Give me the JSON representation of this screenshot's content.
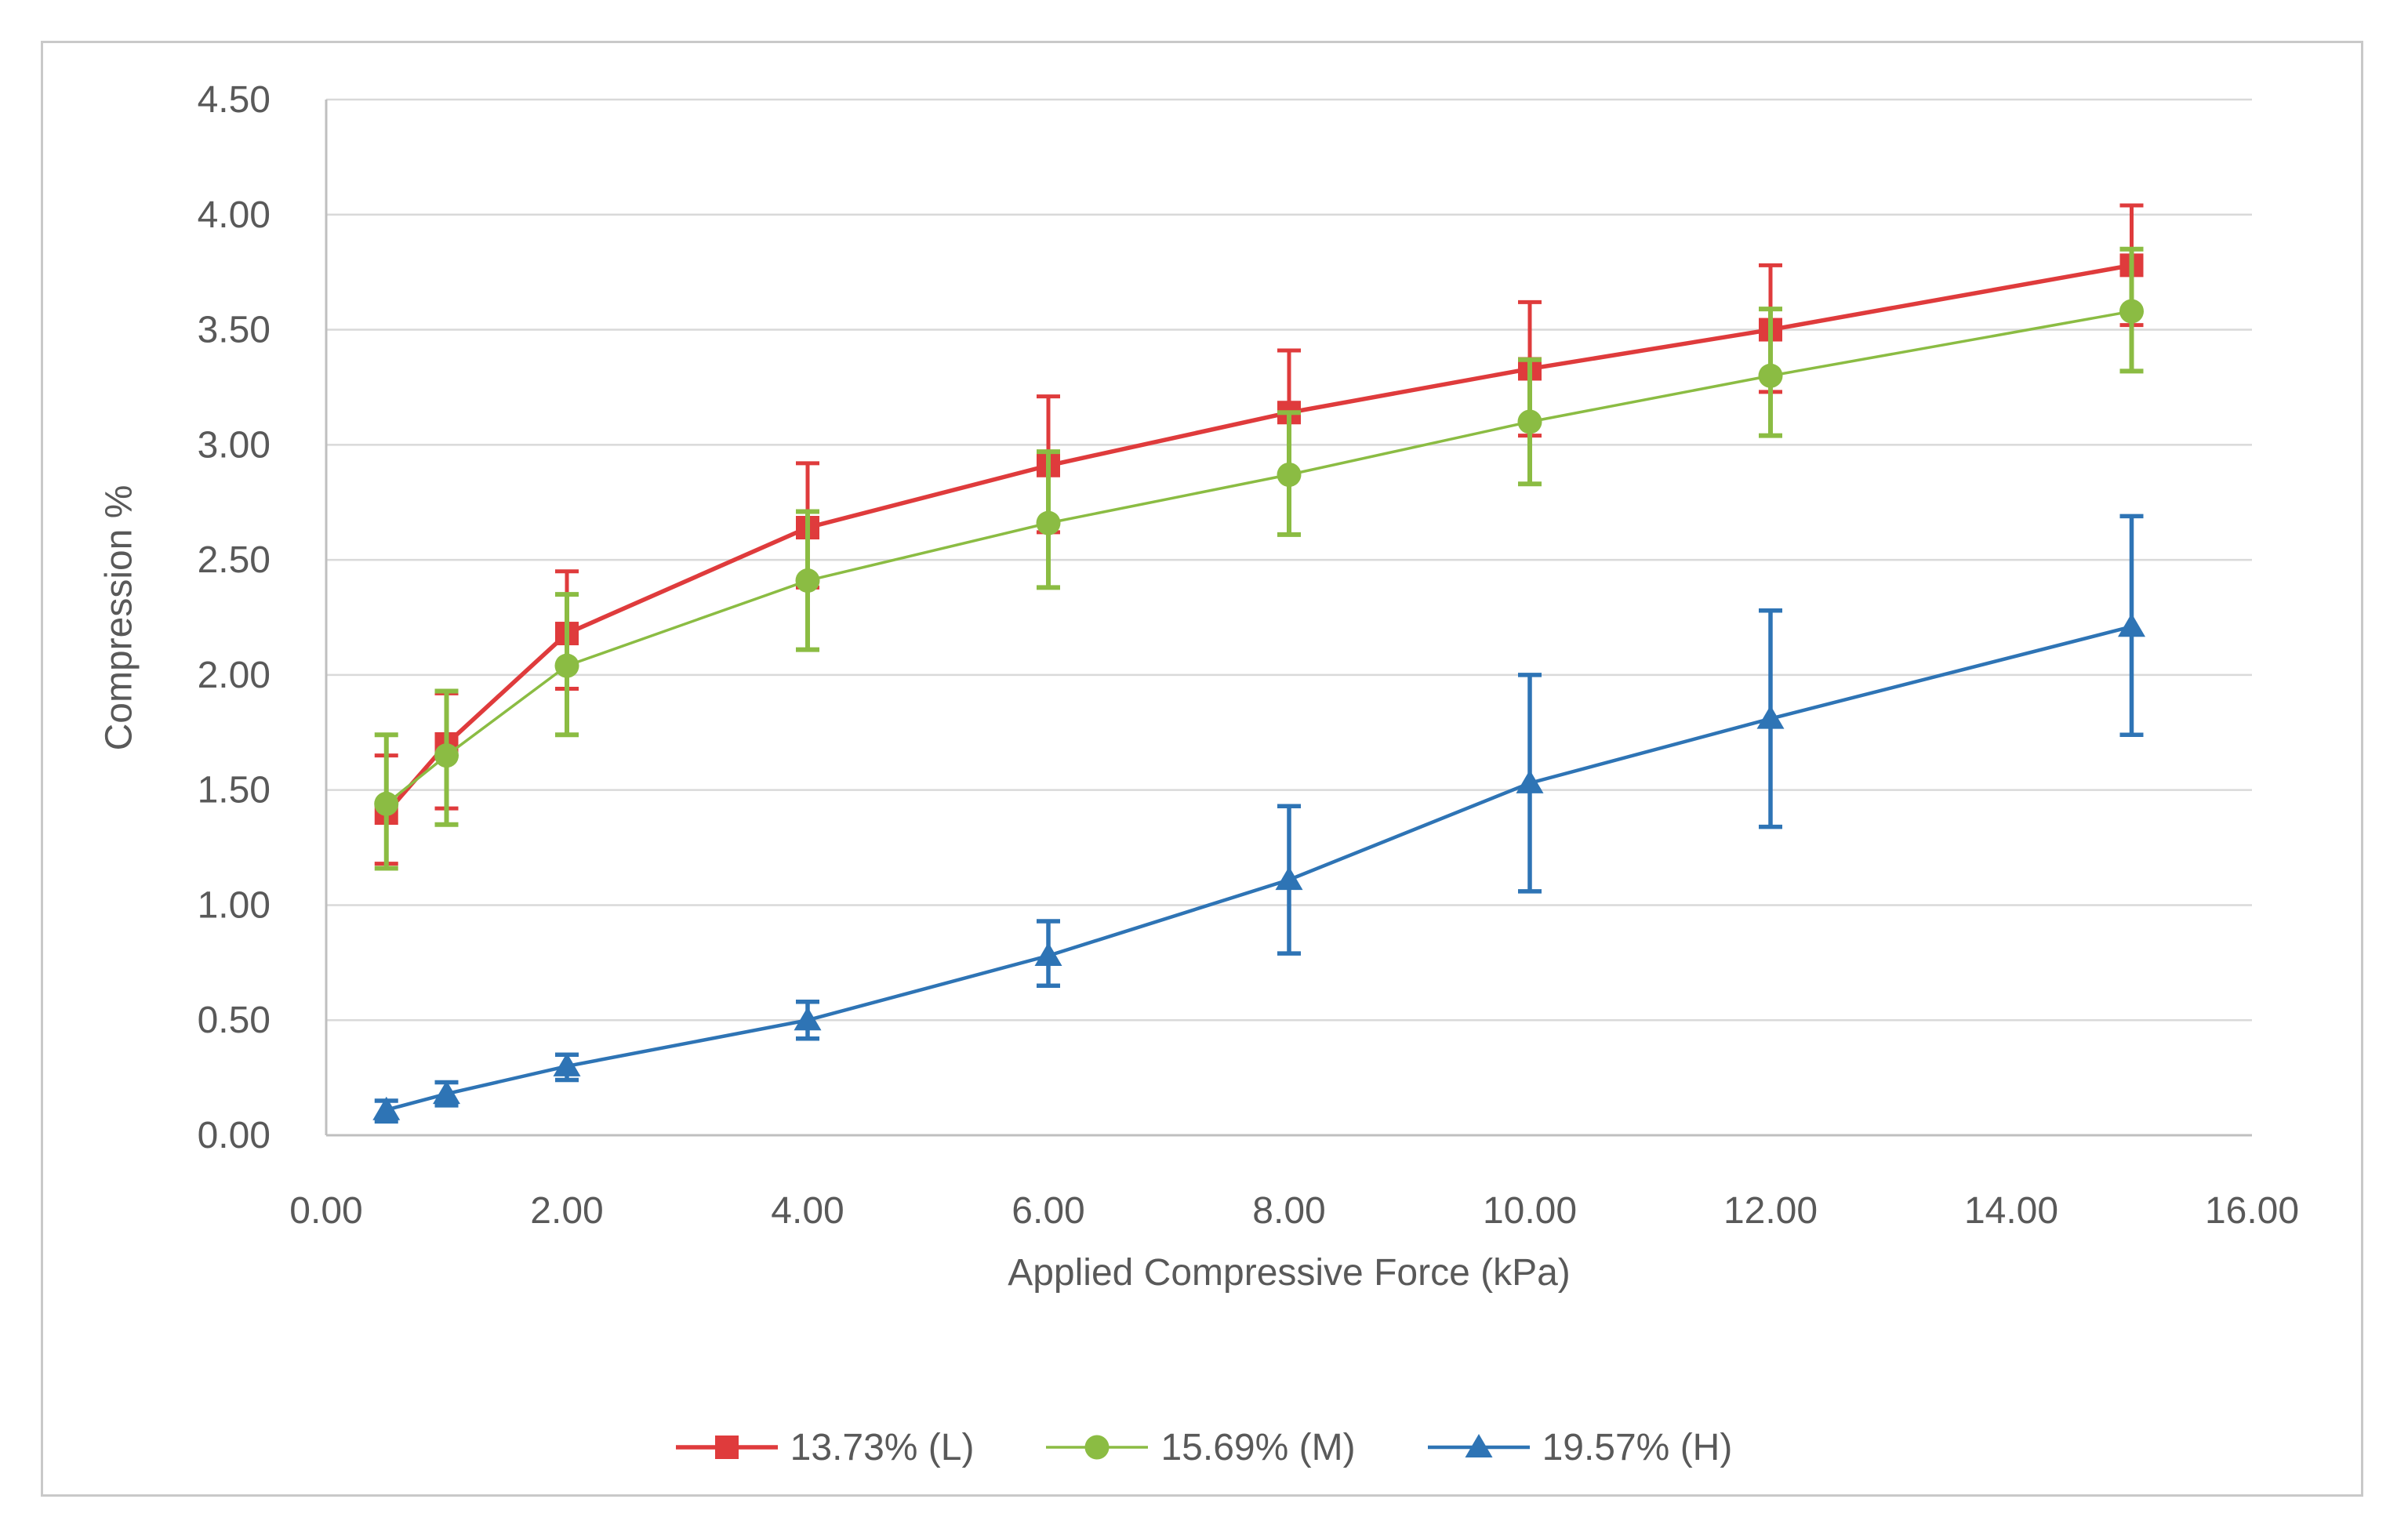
{
  "figure": {
    "background": "#ffffff",
    "border_color": "#c9c9c9"
  },
  "axes": {
    "y_title": "Compression %",
    "x_title": "Applied Compressive Force (kPa)",
    "y_ticks": [
      "4.50",
      "4.00",
      "3.50",
      "3.00",
      "2.50",
      "2.00",
      "1.50",
      "1.00",
      "0.50",
      "0.00"
    ],
    "x_ticks": [
      "0.00",
      "2.00",
      "4.00",
      "6.00",
      "8.00",
      "10.00",
      "12.00",
      "14.00",
      "16.00"
    ],
    "text_color": "#595959",
    "gridline_color": "#d9d9d9",
    "axisline_color": "#bfbfbf"
  },
  "chart_data": {
    "type": "line",
    "title": "",
    "xlabel": "Applied Compressive Force (kPa)",
    "ylabel": "Compression %",
    "x": [
      0.5,
      1,
      2,
      4,
      6,
      8,
      10,
      12,
      15
    ],
    "series": [
      {
        "name": "13.73% (L)",
        "color": "#df3b3c",
        "marker": "square",
        "values": [
          1.4,
          1.7,
          2.18,
          2.64,
          2.91,
          3.14,
          3.33,
          3.5,
          3.78
        ],
        "err_plus": [
          0.25,
          0.22,
          0.27,
          0.28,
          0.3,
          0.27,
          0.29,
          0.28,
          0.26
        ],
        "err_minus": [
          0.22,
          0.28,
          0.24,
          0.26,
          0.29,
          0.27,
          0.29,
          0.27,
          0.26
        ]
      },
      {
        "name": "15.69% (M)",
        "color": "#8bbc43",
        "marker": "circle",
        "values": [
          1.44,
          1.65,
          2.04,
          2.41,
          2.66,
          2.87,
          3.1,
          3.3,
          3.58
        ],
        "err_plus": [
          0.3,
          0.28,
          0.31,
          0.3,
          0.31,
          0.27,
          0.27,
          0.29,
          0.27
        ],
        "err_minus": [
          0.28,
          0.3,
          0.3,
          0.3,
          0.28,
          0.26,
          0.27,
          0.26,
          0.26
        ]
      },
      {
        "name": "19.57% (H)",
        "color": "#2e74b5",
        "marker": "triangle",
        "values": [
          0.11,
          0.18,
          0.3,
          0.5,
          0.78,
          1.11,
          1.53,
          1.81,
          2.21
        ],
        "err_plus": [
          0.04,
          0.05,
          0.05,
          0.08,
          0.15,
          0.32,
          0.47,
          0.47,
          0.48
        ],
        "err_minus": [
          0.05,
          0.05,
          0.06,
          0.08,
          0.13,
          0.32,
          0.47,
          0.47,
          0.47
        ]
      }
    ],
    "xlim": [
      0,
      16
    ],
    "ylim": [
      0,
      4.5
    ],
    "x_tick_step": 2,
    "y_tick_step": 0.5,
    "grid": "horizontal",
    "legend_position": "bottom-center"
  }
}
